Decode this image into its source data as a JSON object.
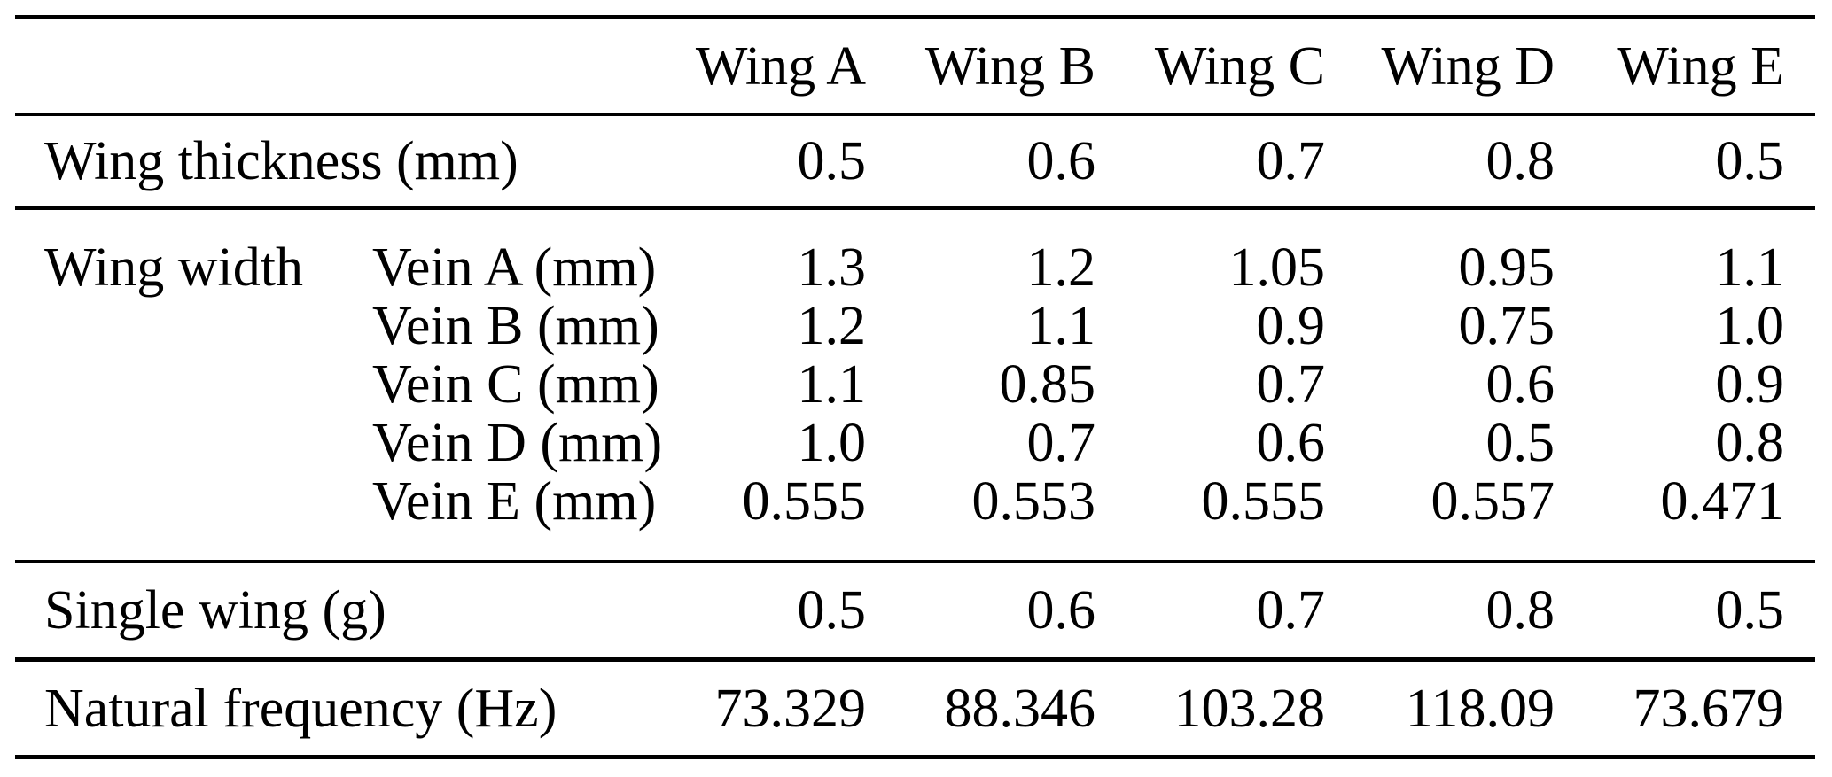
{
  "chart_data": {
    "type": "table",
    "columns": [
      "Wing A",
      "Wing B",
      "Wing C",
      "Wing D",
      "Wing E"
    ],
    "thickness": {
      "label": "Wing thickness (mm)",
      "values": [
        "0.5",
        "0.6",
        "0.7",
        "0.8",
        "0.5"
      ]
    },
    "wing_width": {
      "group_label": "Wing width",
      "rows": [
        {
          "label": "Vein A (mm)",
          "values": [
            "1.3",
            "1.2",
            "1.05",
            "0.95",
            "1.1"
          ]
        },
        {
          "label": "Vein B (mm)",
          "values": [
            "1.2",
            "1.1",
            "0.9",
            "0.75",
            "1.0"
          ]
        },
        {
          "label": "Vein C (mm)",
          "values": [
            "1.1",
            "0.85",
            "0.7",
            "0.6",
            "0.9"
          ]
        },
        {
          "label": "Vein D (mm)",
          "values": [
            "1.0",
            "0.7",
            "0.6",
            "0.5",
            "0.8"
          ]
        },
        {
          "label": "Vein E (mm)",
          "values": [
            "0.555",
            "0.553",
            "0.555",
            "0.557",
            "0.471"
          ]
        }
      ]
    },
    "single_wing": {
      "label": "Single wing (g)",
      "values": [
        "0.5",
        "0.6",
        "0.7",
        "0.8",
        "0.5"
      ]
    },
    "natural_frequency": {
      "label": "Natural frequency (Hz)",
      "values": [
        "73.329",
        "88.346",
        "103.28",
        "118.09",
        "73.679"
      ]
    },
    "style": {
      "rule_color": "#000000",
      "text_color": "#000000",
      "background": "#ffffff"
    }
  }
}
